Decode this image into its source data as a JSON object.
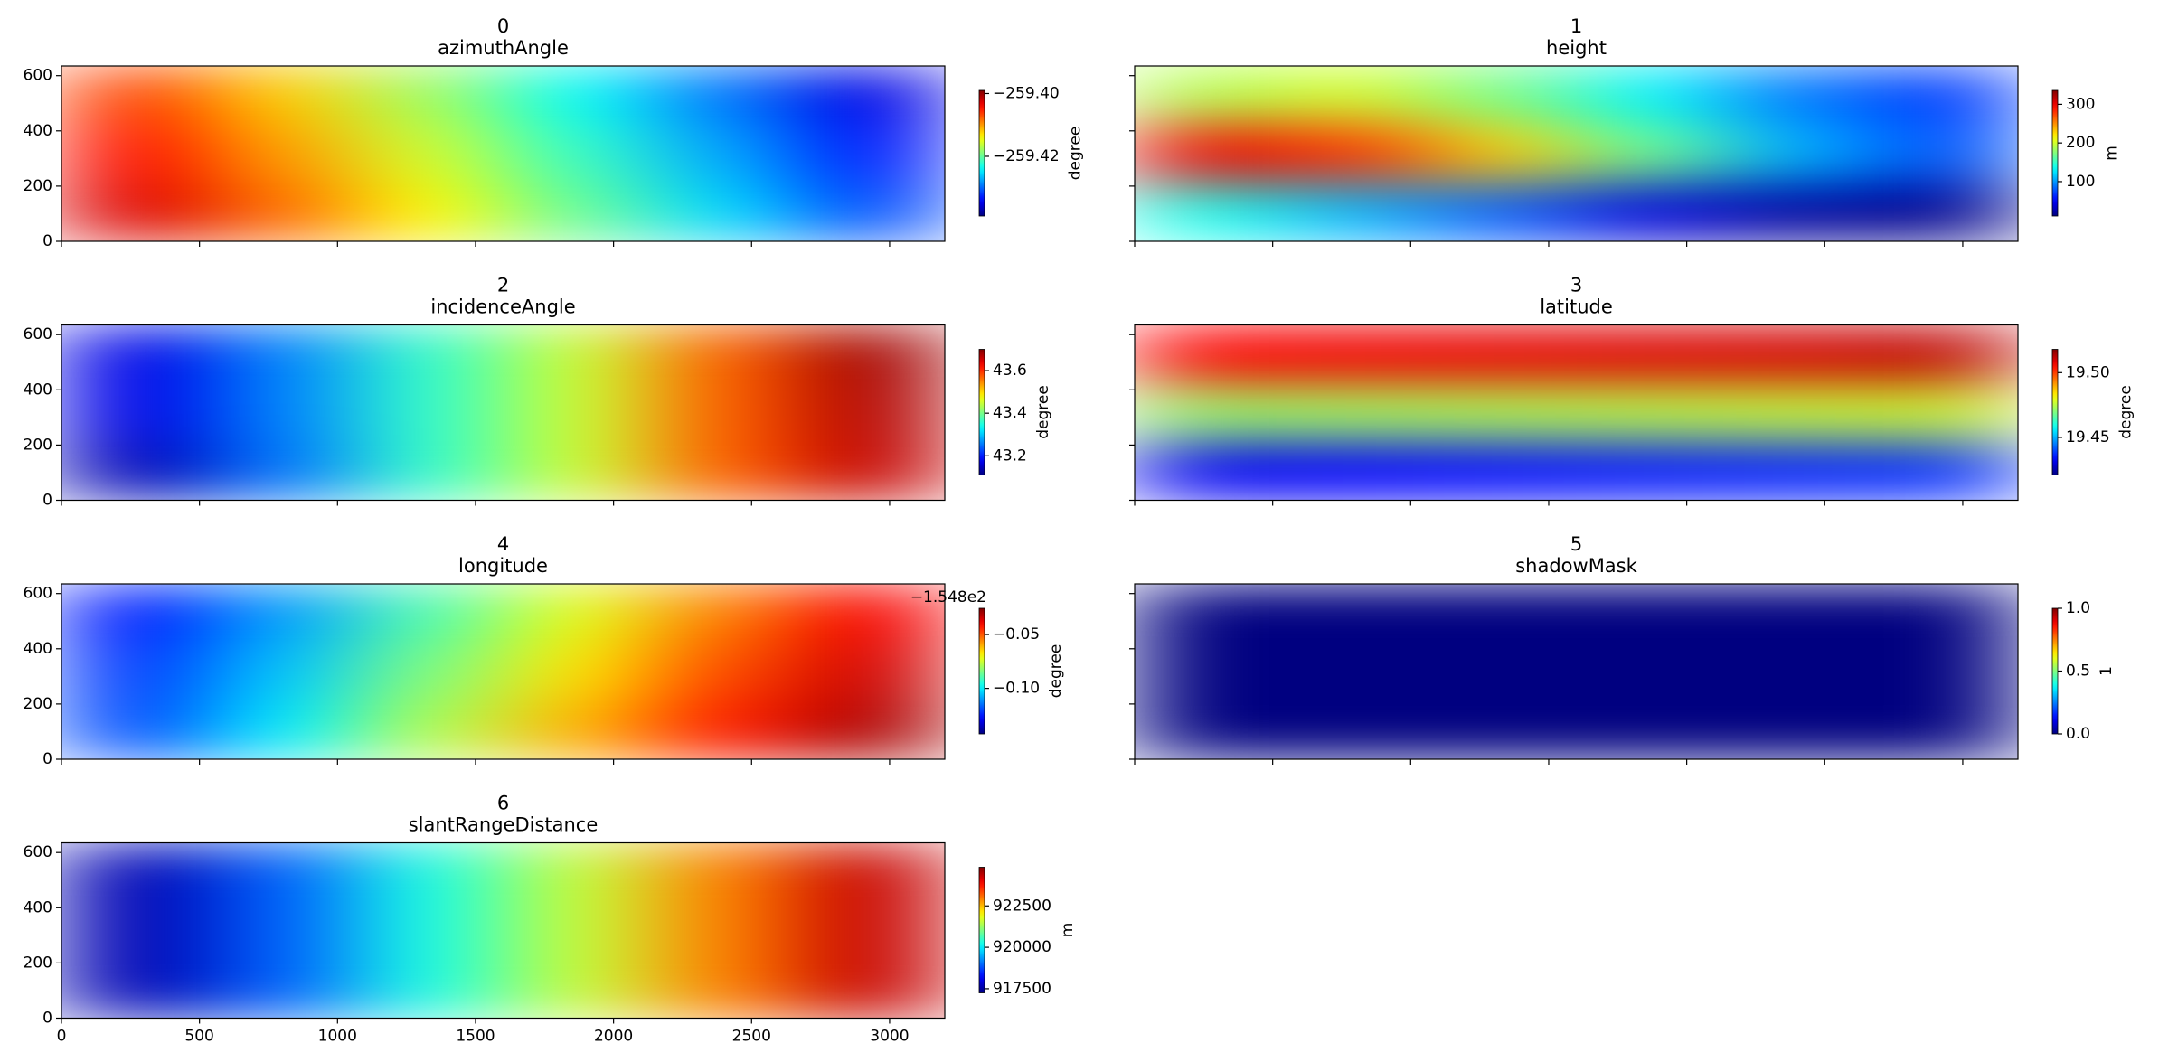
{
  "chart_data": [
    {
      "type": "heatmap",
      "title": "0",
      "subtitle": "azimuthAngle",
      "xlim": [
        0,
        3200
      ],
      "xticks": [
        0,
        500,
        1000,
        1500,
        2000,
        2500,
        3000
      ],
      "ylim": [
        0,
        635
      ],
      "yticks": [
        0,
        200,
        400,
        600
      ],
      "xticklabels": false,
      "yticklabels": true,
      "colormap": "jet",
      "clim": [
        -259.439,
        -259.399
      ],
      "colorbar": {
        "label": "degree",
        "ticks": [
          {
            "value": -259.4,
            "label": "−259.40"
          },
          {
            "value": -259.42,
            "label": "−259.42"
          }
        ]
      },
      "values": [
        [
          -259.4066,
          -259.4122,
          -259.4178,
          -259.4238,
          -259.4294,
          -259.435
        ],
        [
          -259.4046,
          -259.4102,
          -259.4158,
          -259.4218,
          -259.4274,
          -259.433
        ],
        [
          -259.4026,
          -259.4082,
          -259.4138,
          -259.4198,
          -259.4254,
          -259.431
        ]
      ]
    },
    {
      "type": "heatmap",
      "title": "1",
      "subtitle": "height",
      "xlim": [
        0,
        3200
      ],
      "xticks": [
        0,
        500,
        1000,
        1500,
        2000,
        2500,
        3000
      ],
      "ylim": [
        0,
        635
      ],
      "yticks": [
        0,
        200,
        400,
        600
      ],
      "xticklabels": false,
      "yticklabels": false,
      "colormap": "jet",
      "clim": [
        11,
        336
      ],
      "colorbar": {
        "label": "m",
        "ticks": [
          100,
          200,
          300
        ]
      },
      "values": [
        [
          190,
          200,
          170,
          130,
          90,
          70
        ],
        [
          300,
          280,
          230,
          170,
          110,
          80
        ],
        [
          140,
          110,
          80,
          40,
          20,
          15
        ]
      ]
    },
    {
      "type": "heatmap",
      "title": "2",
      "subtitle": "incidenceAngle",
      "xlim": [
        0,
        3200
      ],
      "xticks": [
        0,
        500,
        1000,
        1500,
        2000,
        2500,
        3000
      ],
      "ylim": [
        0,
        635
      ],
      "yticks": [
        0,
        200,
        400,
        600
      ],
      "xticklabels": false,
      "yticklabels": true,
      "colormap": "jet",
      "clim": [
        43.11,
        43.7
      ],
      "colorbar": {
        "label": "degree",
        "ticks": [
          43.2,
          43.4,
          43.6
        ]
      },
      "values": [
        [
          43.17,
          43.26,
          43.36,
          43.45,
          43.57,
          43.68
        ],
        [
          43.17,
          43.26,
          43.36,
          43.45,
          43.57,
          43.67
        ],
        [
          43.14,
          43.25,
          43.36,
          43.45,
          43.57,
          43.66
        ]
      ]
    },
    {
      "type": "heatmap",
      "title": "3",
      "subtitle": "latitude",
      "xlim": [
        0,
        3200
      ],
      "xticks": [
        0,
        500,
        1000,
        1500,
        2000,
        2500,
        3000
      ],
      "ylim": [
        0,
        635
      ],
      "yticks": [
        0,
        200,
        400,
        600
      ],
      "xticklabels": false,
      "yticklabels": false,
      "colormap": "jet",
      "clim": [
        19.421,
        19.518
      ],
      "colorbar": {
        "label": "degree",
        "ticks": [
          19.45,
          {
            "value": 19.5,
            "label": "19.50"
          }
        ]
      },
      "values": [
        [
          19.506,
          19.507,
          19.508,
          19.509,
          19.51,
          19.512
        ],
        [
          19.472,
          19.473,
          19.474,
          19.475,
          19.476,
          19.477
        ],
        [
          19.432,
          19.433,
          19.434,
          19.435,
          19.436,
          19.437
        ]
      ]
    },
    {
      "type": "heatmap",
      "title": "4",
      "subtitle": "longitude",
      "xlim": [
        0,
        3200
      ],
      "xticks": [
        0,
        500,
        1000,
        1500,
        2000,
        2500,
        3000
      ],
      "ylim": [
        0,
        635
      ],
      "yticks": [
        0,
        200,
        400,
        600
      ],
      "xticklabels": false,
      "yticklabels": true,
      "colormap": "jet",
      "clim": [
        -0.1423,
        -0.0256
      ],
      "colorbar": {
        "label": "degree",
        "offset": "−1.548e2",
        "ticks": [
          {
            "value": -0.05,
            "label": "−0.05"
          },
          {
            "value": -0.1,
            "label": "−0.10"
          }
        ]
      },
      "values": [
        [
          -0.1248,
          -0.1096,
          -0.0898,
          -0.0723,
          -0.0548,
          -0.0396
        ],
        [
          -0.1213,
          -0.105,
          -0.084,
          -0.0664,
          -0.0489,
          -0.0349
        ],
        [
          -0.119,
          -0.1003,
          -0.0781,
          -0.0606,
          -0.0431,
          -0.0303
        ]
      ]
    },
    {
      "type": "heatmap",
      "title": "5",
      "subtitle": "shadowMask",
      "xlim": [
        0,
        3200
      ],
      "xticks": [
        0,
        500,
        1000,
        1500,
        2000,
        2500,
        3000
      ],
      "ylim": [
        0,
        635
      ],
      "yticks": [
        0,
        200,
        400,
        600
      ],
      "xticklabels": false,
      "yticklabels": false,
      "colormap": "jet",
      "clim": [
        0,
        1
      ],
      "colorbar": {
        "label": "1",
        "ticks": [
          {
            "value": 0,
            "label": "0.0"
          },
          {
            "value": 0.5,
            "label": "0.5"
          },
          {
            "value": 1,
            "label": "1.0"
          }
        ]
      },
      "values": [
        [
          0,
          0,
          0,
          0,
          0,
          0
        ],
        [
          0,
          0,
          0,
          0,
          0,
          0
        ],
        [
          0,
          0,
          0,
          0,
          0,
          0
        ]
      ]
    },
    {
      "type": "heatmap",
      "title": "6",
      "subtitle": "slantRangeDistance",
      "xlim": [
        0,
        3200
      ],
      "xticks": [
        0,
        500,
        1000,
        1500,
        2000,
        2500,
        3000
      ],
      "ylim": [
        0,
        635
      ],
      "yticks": [
        0,
        200,
        400,
        600
      ],
      "xticklabels": true,
      "yticklabels": true,
      "colormap": "jet",
      "clim": [
        917250,
        924833
      ],
      "colorbar": {
        "label": "m",
        "ticks": [
          917500,
          920000,
          922500
        ]
      },
      "values": [
        [
          917629,
          918918,
          920283,
          921572,
          922937,
          924302
        ],
        [
          917629,
          918918,
          920283,
          921572,
          922937,
          924302
        ],
        [
          917629,
          918918,
          920283,
          921572,
          922937,
          924302
        ]
      ]
    }
  ]
}
